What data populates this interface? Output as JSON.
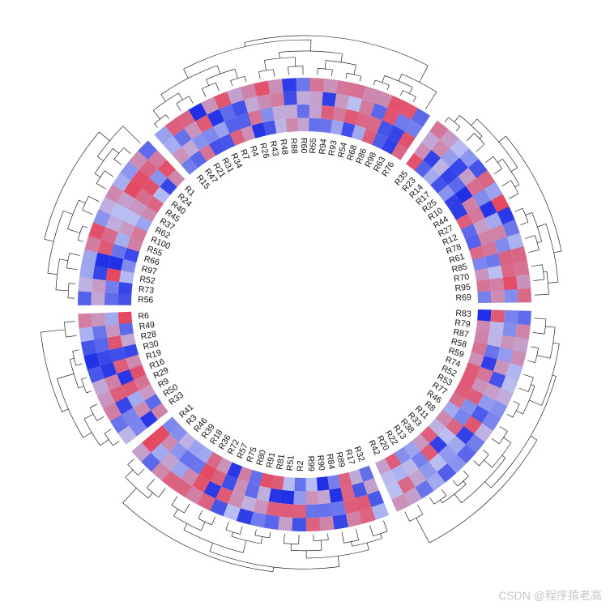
{
  "figure": {
    "type": "circular-heatmap-with-dendrogram",
    "tracks": 4,
    "palette": {
      "low": "#1f2fe6",
      "mid": "#b9bff2",
      "high": "#e6475f"
    },
    "sectors": [
      {
        "rows": [
          "R83",
          "R79",
          "R87",
          "R58",
          "R59",
          "R74",
          "R52",
          "R53",
          "R77",
          "R46",
          "R8",
          "R11",
          "R33",
          "R38",
          "R13",
          "R22",
          "R20",
          "R42"
        ]
      },
      {
        "rows": [
          "R32",
          "R17",
          "R89",
          "R84",
          "R90",
          "R99",
          "R2",
          "R51",
          "R81",
          "R91",
          "R80",
          "R75",
          "R57",
          "R72",
          "R36",
          "R18",
          "R39",
          "R46",
          "R3",
          "R41"
        ]
      },
      {
        "rows": [
          "R33",
          "R50",
          "R9",
          "R29",
          "R16",
          "R19",
          "R30",
          "R28",
          "R49",
          "R6"
        ]
      },
      {
        "rows": [
          "R56",
          "R73",
          "R52",
          "R97",
          "R66",
          "R55",
          "R100",
          "R62",
          "R37",
          "R45",
          "R40",
          "R24",
          "R1"
        ]
      },
      {
        "rows": [
          "R15",
          "R47",
          "R21",
          "R31",
          "R34",
          "R7",
          "R4",
          "R26",
          "R43",
          "R48",
          "R88",
          "R60",
          "R65",
          "R94",
          "R93",
          "R54",
          "R68",
          "R86",
          "R98",
          "R63",
          "R76"
        ]
      },
      {
        "rows": [
          "R35",
          "R23",
          "R14",
          "R17",
          "R25",
          "R10",
          "R44",
          "R27",
          "R12",
          "R78",
          "R61",
          "R85",
          "R70",
          "R95",
          "R69"
        ]
      }
    ]
  },
  "watermark": "CSDN @程序猿老高"
}
